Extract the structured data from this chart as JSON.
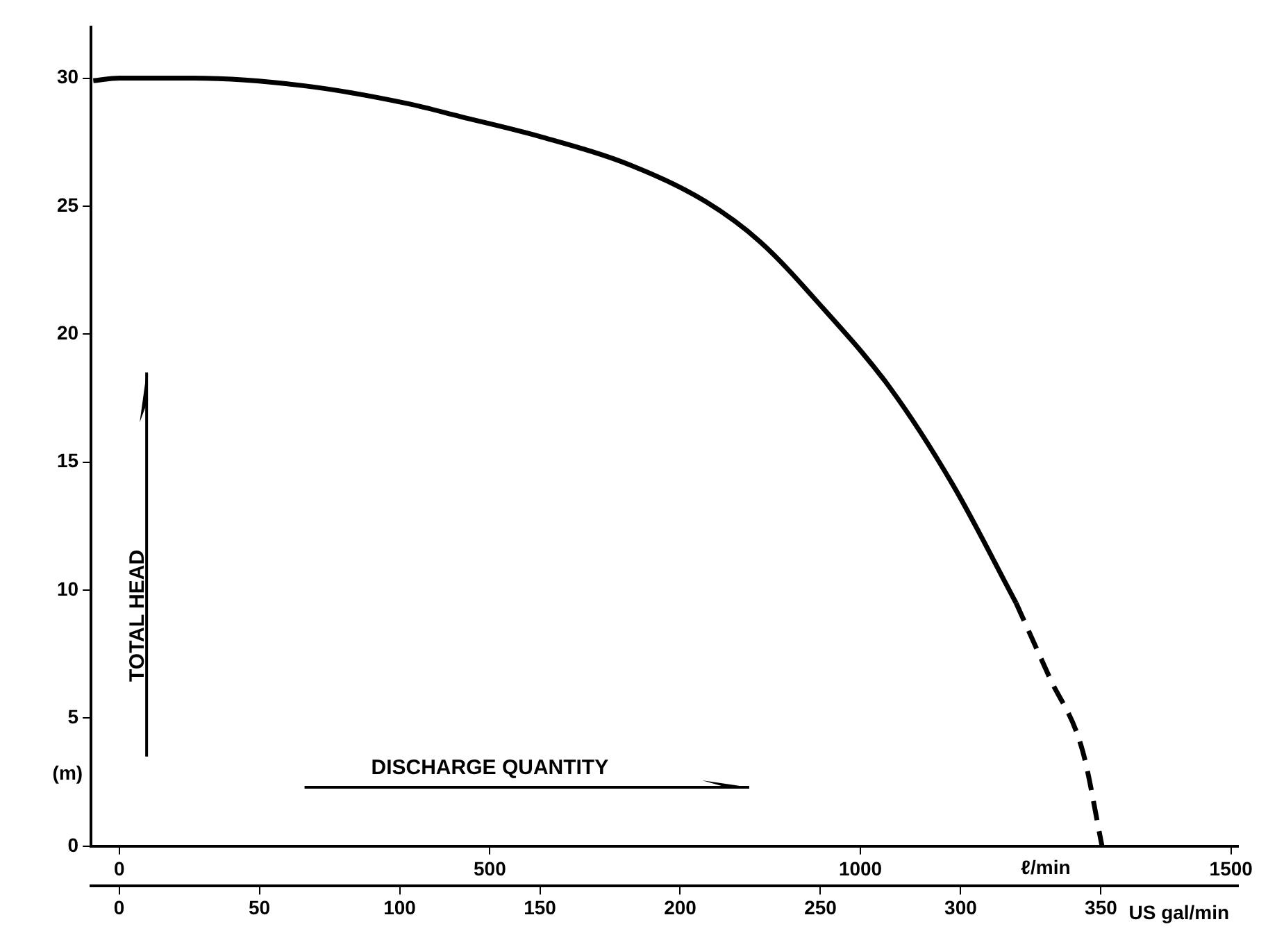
{
  "chart_data": {
    "type": "line",
    "xlabel": "DISCHARGE QUANTITY",
    "ylabel": "TOTAL HEAD",
    "x2label": "US gal/min",
    "annotations": [
      "(m)",
      "ℓ/min"
    ],
    "xlim": [
      -38,
      1510
    ],
    "xticks": [
      0,
      500,
      1000,
      1500
    ],
    "x2lim": [
      -10,
      399
    ],
    "x2ticks": [
      0,
      50,
      100,
      150,
      200,
      250,
      300,
      350
    ],
    "ylim": [
      0,
      32
    ],
    "yticks": [
      0,
      5,
      10,
      15,
      20,
      25,
      30
    ],
    "series": [
      {
        "color": "#000000",
        "line_style": "solid",
        "x": [
          -35,
          0,
          100,
          250,
          390,
          460,
          570,
          690,
          790,
          865,
          950,
          1040,
          1125,
          1210
        ],
        "values": [
          29.9,
          30.0,
          30.0,
          29.7,
          29.0,
          28.5,
          27.7,
          26.6,
          25.2,
          23.6,
          21.0,
          17.9,
          14.1,
          9.5
        ]
      },
      {
        "color": "#000000",
        "line_style": "dashed",
        "x": [
          1210,
          1255,
          1300,
          1326
        ],
        "values": [
          9.5,
          6.6,
          3.7,
          0
        ]
      }
    ]
  }
}
